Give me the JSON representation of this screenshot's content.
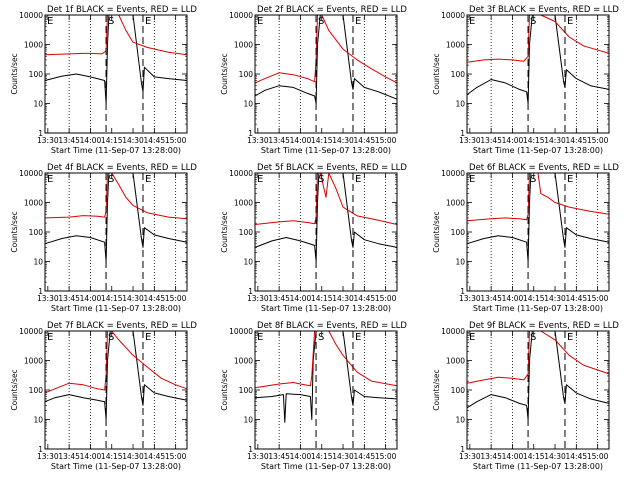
{
  "figure": {
    "xlabel": "Start Time (11-Sep-07 13:28:00)",
    "ylabel": "Counts/sec"
  },
  "x_ticks": [
    "13:30",
    "13:45",
    "14:00",
    "14:15",
    "14:30",
    "14:45",
    "15:00"
  ],
  "y_ticks": [
    "1",
    "10",
    "100",
    "1000",
    "10000"
  ],
  "marker_letters": [
    "E",
    "S",
    "E"
  ],
  "colors": {
    "events": "#000000",
    "lld": "#dd0000"
  },
  "chart_data": [
    {
      "type": "line",
      "title": "Det 1f BLACK = Events, RED = LLD",
      "xlim": [
        "13:28",
        "15:08"
      ],
      "ylim": [
        1,
        10000
      ],
      "yscale": "log",
      "markers": {
        "E1": "13:28",
        "S": "14:11",
        "E2": "14:37"
      },
      "dotted_x": [
        "13:45",
        "14:00",
        "14:45",
        "15:00"
      ],
      "series": [
        {
          "name": "Events",
          "x": [
            "13:28",
            "13:40",
            "13:50",
            "14:00",
            "14:10",
            "14:11",
            "14:12",
            "14:13",
            "14:15",
            "14:20",
            "14:25",
            "14:30",
            "14:36",
            "14:37",
            "14:38",
            "14:45",
            "14:55",
            "15:08"
          ],
          "y": [
            60,
            85,
            100,
            80,
            60,
            10,
            1000,
            10000,
            10000,
            10000,
            10000,
            10000,
            45,
            25,
            170,
            80,
            70,
            60
          ]
        },
        {
          "name": "LLD",
          "x": [
            "13:28",
            "13:45",
            "13:55",
            "14:00",
            "14:08",
            "14:11",
            "14:12",
            "14:15",
            "14:20",
            "14:25",
            "14:30",
            "14:40",
            "14:55",
            "15:08"
          ],
          "y": [
            450,
            480,
            500,
            500,
            480,
            600,
            10000,
            10000,
            10000,
            3000,
            1200,
            800,
            550,
            450
          ]
        }
      ]
    },
    {
      "type": "line",
      "title": "Det 2f BLACK = Events, RED = LLD",
      "xlim": [
        "13:28",
        "15:08"
      ],
      "ylim": [
        1,
        10000
      ],
      "yscale": "log",
      "markers": {
        "E1": "13:28",
        "S": "14:11",
        "E2": "14:37"
      },
      "dotted_x": [
        "13:45",
        "14:00",
        "14:45",
        "15:00"
      ],
      "series": [
        {
          "name": "Events",
          "x": [
            "13:28",
            "13:35",
            "13:45",
            "13:55",
            "14:05",
            "14:10",
            "14:11",
            "14:12",
            "14:14",
            "14:20",
            "14:30",
            "14:36",
            "14:37",
            "14:38",
            "14:45",
            "14:55",
            "15:08"
          ],
          "y": [
            18,
            28,
            40,
            35,
            22,
            18,
            10,
            1000,
            10000,
            10000,
            10000,
            50,
            30,
            70,
            35,
            25,
            14
          ]
        },
        {
          "name": "LLD",
          "x": [
            "13:28",
            "13:35",
            "13:45",
            "13:55",
            "14:05",
            "14:10",
            "14:11",
            "14:12",
            "14:15",
            "14:20",
            "14:30",
            "14:40",
            "14:50",
            "15:00",
            "15:08"
          ],
          "y": [
            50,
            70,
            110,
            95,
            70,
            55,
            300,
            10000,
            10000,
            3000,
            700,
            300,
            150,
            80,
            50
          ]
        }
      ]
    },
    {
      "type": "line",
      "title": "Det 3f BLACK = Events, RED = LLD",
      "xlim": [
        "13:28",
        "15:08"
      ],
      "ylim": [
        1,
        10000
      ],
      "yscale": "log",
      "markers": {
        "E1": "13:28",
        "S": "14:11",
        "E2": "14:37"
      },
      "dotted_x": [
        "13:45",
        "14:00",
        "14:45",
        "15:00"
      ],
      "series": [
        {
          "name": "Events",
          "x": [
            "13:28",
            "13:35",
            "13:45",
            "13:55",
            "14:05",
            "14:10",
            "14:11",
            "14:12",
            "14:14",
            "14:20",
            "14:30",
            "14:36",
            "14:37",
            "14:38",
            "14:45",
            "14:55",
            "15:08"
          ],
          "y": [
            20,
            35,
            65,
            50,
            30,
            25,
            10,
            1000,
            10000,
            10000,
            10000,
            55,
            35,
            140,
            70,
            40,
            30
          ]
        },
        {
          "name": "LLD",
          "x": [
            "13:28",
            "13:40",
            "13:50",
            "14:00",
            "14:08",
            "14:11",
            "14:12",
            "14:15",
            "14:20",
            "14:30",
            "14:40",
            "14:50",
            "15:08"
          ],
          "y": [
            250,
            300,
            320,
            300,
            270,
            400,
            10000,
            10000,
            10000,
            6000,
            1800,
            900,
            500
          ]
        }
      ]
    },
    {
      "type": "line",
      "title": "Det 4f BLACK = Events, RED = LLD",
      "xlim": [
        "13:28",
        "15:08"
      ],
      "ylim": [
        1,
        10000
      ],
      "yscale": "log",
      "markers": {
        "E1": "13:28",
        "S": "14:11",
        "E2": "14:37"
      },
      "dotted_x": [
        "13:45",
        "14:00",
        "14:45",
        "15:00"
      ],
      "series": [
        {
          "name": "Events",
          "x": [
            "13:28",
            "13:40",
            "13:50",
            "14:00",
            "14:10",
            "14:11",
            "14:12",
            "14:13",
            "14:20",
            "14:30",
            "14:36",
            "14:37",
            "14:38",
            "14:45",
            "14:55",
            "15:08"
          ],
          "y": [
            40,
            60,
            75,
            65,
            45,
            10,
            1000,
            10000,
            10000,
            10000,
            55,
            30,
            140,
            80,
            60,
            45
          ]
        },
        {
          "name": "LLD",
          "x": [
            "13:28",
            "13:45",
            "13:55",
            "14:05",
            "14:10",
            "14:11",
            "14:12",
            "14:15",
            "14:20",
            "14:25",
            "14:30",
            "14:40",
            "14:55",
            "15:08"
          ],
          "y": [
            300,
            320,
            360,
            340,
            320,
            500,
            10000,
            10000,
            4000,
            1500,
            800,
            450,
            320,
            280
          ]
        }
      ]
    },
    {
      "type": "line",
      "title": "Det 5f BLACK = Events, RED = LLD",
      "xlim": [
        "13:28",
        "15:08"
      ],
      "ylim": [
        1,
        10000
      ],
      "yscale": "log",
      "markers": {
        "E1": "13:28",
        "S": "14:11",
        "E2": "14:37"
      },
      "dotted_x": [
        "13:45",
        "14:00",
        "14:45",
        "15:00"
      ],
      "series": [
        {
          "name": "Events",
          "x": [
            "13:28",
            "13:40",
            "13:50",
            "14:00",
            "14:10",
            "14:11",
            "14:12",
            "14:13",
            "14:20",
            "14:30",
            "14:36",
            "14:37",
            "14:38",
            "14:45",
            "14:55",
            "15:08"
          ],
          "y": [
            30,
            50,
            65,
            50,
            35,
            10,
            1000,
            10000,
            10000,
            10000,
            50,
            30,
            100,
            55,
            40,
            30
          ]
        },
        {
          "name": "LLD",
          "x": [
            "13:28",
            "13:45",
            "13:55",
            "14:05",
            "14:10",
            "14:11",
            "14:12",
            "14:14",
            "14:18",
            "14:20",
            "14:25",
            "14:30",
            "14:40",
            "14:55",
            "15:08"
          ],
          "y": [
            180,
            220,
            240,
            210,
            190,
            300,
            10000,
            10000,
            1500,
            10000,
            3000,
            700,
            350,
            250,
            180
          ]
        }
      ]
    },
    {
      "type": "line",
      "title": "Det 6f BLACK = Events, RED = LLD",
      "xlim": [
        "13:28",
        "15:08"
      ],
      "ylim": [
        1,
        10000
      ],
      "yscale": "log",
      "markers": {
        "E1": "13:28",
        "S": "14:11",
        "E2": "14:37"
      },
      "dotted_x": [
        "13:45",
        "14:00",
        "14:45",
        "15:00"
      ],
      "series": [
        {
          "name": "Events",
          "x": [
            "13:28",
            "13:40",
            "13:50",
            "14:00",
            "14:10",
            "14:11",
            "14:12",
            "14:13",
            "14:20",
            "14:30",
            "14:36",
            "14:37",
            "14:38",
            "14:45",
            "14:55",
            "15:08"
          ],
          "y": [
            40,
            60,
            75,
            65,
            45,
            10,
            1000,
            10000,
            10000,
            10000,
            55,
            30,
            140,
            80,
            60,
            45
          ]
        },
        {
          "name": "LLD",
          "x": [
            "13:28",
            "13:45",
            "13:55",
            "14:05",
            "14:10",
            "14:11",
            "14:12",
            "14:15",
            "14:18",
            "14:20",
            "14:25",
            "14:30",
            "14:40",
            "14:55",
            "15:08"
          ],
          "y": [
            240,
            280,
            300,
            280,
            260,
            400,
            10000,
            10000,
            10000,
            2000,
            1500,
            1000,
            700,
            500,
            400
          ]
        }
      ]
    },
    {
      "type": "line",
      "title": "Det 7f BLACK = Events, RED = LLD",
      "xlim": [
        "13:28",
        "15:08"
      ],
      "ylim": [
        1,
        10000
      ],
      "yscale": "log",
      "markers": {
        "E1": "13:28",
        "S": "14:11",
        "E2": "14:37"
      },
      "dotted_x": [
        "13:45",
        "14:00",
        "14:45",
        "15:00"
      ],
      "series": [
        {
          "name": "Events",
          "x": [
            "13:28",
            "13:35",
            "13:45",
            "13:55",
            "14:05",
            "14:10",
            "14:11",
            "14:12",
            "14:14",
            "14:20",
            "14:30",
            "14:36",
            "14:37",
            "14:38",
            "14:45",
            "14:55",
            "15:08"
          ],
          "y": [
            40,
            55,
            70,
            55,
            45,
            40,
            10,
            1000,
            10000,
            10000,
            10000,
            55,
            30,
            150,
            80,
            60,
            45
          ]
        },
        {
          "name": "LLD",
          "x": [
            "13:28",
            "13:35",
            "13:45",
            "13:55",
            "14:05",
            "14:10",
            "14:11",
            "14:12",
            "14:15",
            "14:20",
            "14:30",
            "14:40",
            "14:50",
            "15:00",
            "15:08"
          ],
          "y": [
            80,
            110,
            170,
            150,
            110,
            100,
            300,
            10000,
            10000,
            5000,
            1500,
            600,
            250,
            150,
            110
          ]
        }
      ]
    },
    {
      "type": "line",
      "title": "Det 8f BLACK = Events, RED = LLD",
      "xlim": [
        "13:28",
        "15:08"
      ],
      "ylim": [
        1,
        10000
      ],
      "yscale": "log",
      "markers": {
        "E1": "13:28",
        "S": "14:11",
        "E2": "14:37"
      },
      "dotted_x": [
        "13:45",
        "14:00",
        "14:45",
        "15:00"
      ],
      "series": [
        {
          "name": "Events",
          "x": [
            "13:28",
            "13:40",
            "13:48",
            "13:49",
            "13:50",
            "14:00",
            "14:07",
            "14:08",
            "14:09",
            "14:11",
            "14:20",
            "14:30",
            "14:36",
            "14:37",
            "14:38",
            "14:45",
            "14:55",
            "15:08"
          ],
          "y": [
            55,
            60,
            70,
            8,
            75,
            70,
            60,
            10,
            1000,
            10000,
            10000,
            10000,
            55,
            30,
            100,
            60,
            55,
            50
          ]
        },
        {
          "name": "LLD",
          "x": [
            "13:28",
            "13:45",
            "13:55",
            "14:00",
            "14:07",
            "14:08",
            "14:10",
            "14:15",
            "14:20",
            "14:25",
            "14:30",
            "14:40",
            "14:50",
            "15:08"
          ],
          "y": [
            120,
            160,
            180,
            160,
            140,
            300,
            10000,
            10000,
            10000,
            3500,
            1500,
            400,
            200,
            140
          ]
        }
      ]
    },
    {
      "type": "line",
      "title": "Det 9f BLACK = Events, RED = LLD",
      "xlim": [
        "13:28",
        "15:08"
      ],
      "ylim": [
        1,
        10000
      ],
      "yscale": "log",
      "markers": {
        "E1": "13:28",
        "S": "14:11",
        "E2": "14:37"
      },
      "dotted_x": [
        "13:45",
        "14:00",
        "14:45",
        "15:00"
      ],
      "series": [
        {
          "name": "Events",
          "x": [
            "13:28",
            "13:35",
            "13:45",
            "13:55",
            "14:05",
            "14:10",
            "14:11",
            "14:12",
            "14:14",
            "14:20",
            "14:30",
            "14:36",
            "14:37",
            "14:38",
            "14:45",
            "14:55",
            "15:08"
          ],
          "y": [
            25,
            40,
            70,
            55,
            35,
            30,
            10,
            1000,
            10000,
            10000,
            10000,
            55,
            35,
            150,
            80,
            50,
            35
          ]
        },
        {
          "name": "LLD",
          "x": [
            "13:28",
            "13:40",
            "13:50",
            "14:00",
            "14:08",
            "14:11",
            "14:12",
            "14:15",
            "14:20",
            "14:30",
            "14:40",
            "14:50",
            "15:08"
          ],
          "y": [
            170,
            220,
            270,
            250,
            220,
            350,
            10000,
            10000,
            10000,
            5000,
            1500,
            700,
            350
          ]
        }
      ]
    }
  ]
}
